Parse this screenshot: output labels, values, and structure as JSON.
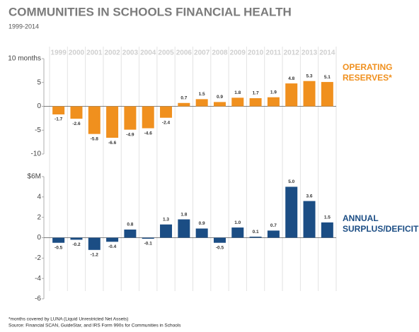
{
  "title": "COMMUNITIES IN SCHOOLS FINANCIAL HEALTH",
  "subtitle": "1999-2014",
  "footnotes": [
    "*months covered by LUNA (Liquid Unrestricted Net Assets)",
    "Source: Financial SCAN, GuideStar, and IRS Form 990s for Communities in Schools"
  ],
  "chart_data": [
    {
      "type": "bar",
      "categories": [
        "1999",
        "2000",
        "2001",
        "2002",
        "2003",
        "2004",
        "2005",
        "2006",
        "2007",
        "2008",
        "2009",
        "2010",
        "2011",
        "2012",
        "2013",
        "2014"
      ],
      "series": [
        {
          "name": "OPERATING RESERVES*",
          "color": "#f0901e",
          "values": [
            -1.7,
            -2.6,
            -5.8,
            -6.6,
            -4.9,
            -4.6,
            -2.4,
            0.7,
            1.5,
            0.9,
            1.8,
            1.7,
            1.9,
            4.8,
            5.3,
            5.1
          ]
        }
      ],
      "ylim": [
        -10,
        10
      ],
      "yticks": [
        {
          "value": 10,
          "label": "10 months"
        },
        5,
        0,
        -5,
        -10
      ]
    },
    {
      "type": "bar",
      "series": [
        {
          "name": "ANNUAL SURPLUS/DEFICIT",
          "color": "#1b4d84",
          "values": [
            -0.5,
            -0.2,
            -1.2,
            -0.4,
            0.8,
            -0.1,
            1.3,
            1.8,
            0.9,
            -0.5,
            1.0,
            0.1,
            0.7,
            5.0,
            3.6,
            1.5
          ],
          "value_labels": [
            "-0.5",
            "-0.2",
            "-1.2",
            "-0.4",
            "0.8",
            "-0.1",
            "1.3",
            "1.8",
            "0.9",
            "-0.5",
            "1.0",
            "0.1",
            "0.7",
            "5.0",
            "3.6",
            "1.5"
          ]
        }
      ],
      "ylim": [
        -6,
        6
      ],
      "yticks": [
        {
          "value": 6,
          "label": "$6M"
        },
        4,
        2,
        0,
        -2,
        -4,
        -6
      ]
    }
  ]
}
